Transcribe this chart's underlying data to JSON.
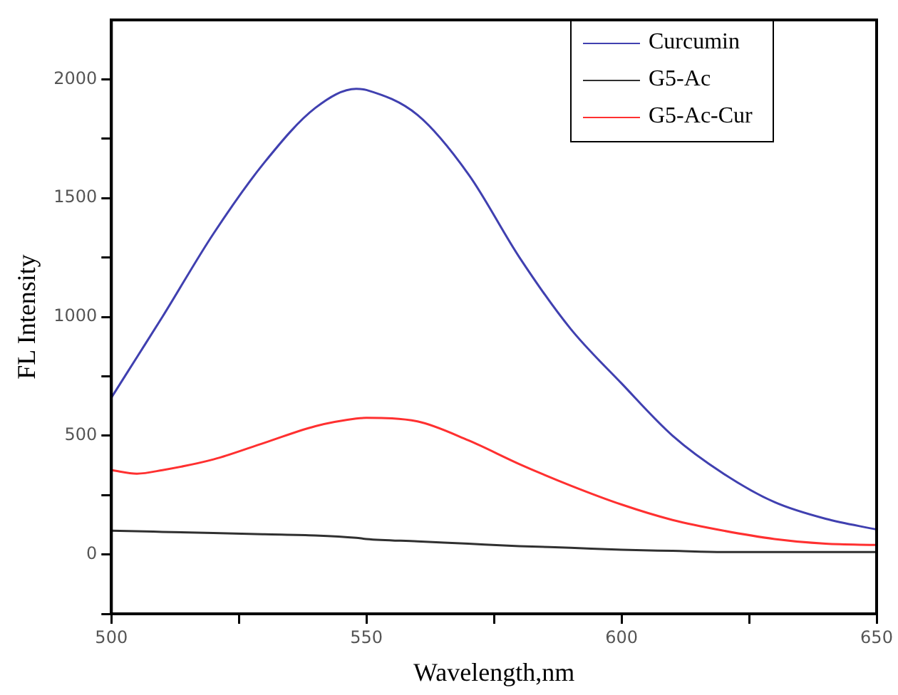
{
  "chart_data": {
    "type": "line",
    "xlabel": "Wavelength,nm",
    "ylabel": "FL Intensity",
    "x": [
      500,
      505,
      510,
      520,
      530,
      540,
      548,
      550,
      560,
      570,
      580,
      590,
      600,
      610,
      620,
      630,
      640,
      650
    ],
    "xlim": [
      500,
      650
    ],
    "xticks": [
      500,
      {
        "value": 525,
        "label": null
      },
      550,
      {
        "value": 575,
        "label": null
      },
      600,
      {
        "value": 625,
        "label": null
      },
      650
    ],
    "ylim": [
      -250,
      2250
    ],
    "yticks": [
      {
        "value": -250,
        "label": null
      },
      0,
      {
        "value": 250,
        "label": null
      },
      500,
      {
        "value": 750,
        "label": null
      },
      1000,
      {
        "value": 1250,
        "label": null
      },
      1500,
      {
        "value": 1750,
        "label": null
      },
      2000
    ],
    "series": [
      {
        "name": "Curcumin",
        "color": "#4040b0",
        "values": [
          660,
          830,
          1000,
          1350,
          1650,
          1880,
          1960,
          1955,
          1850,
          1600,
          1250,
          950,
          720,
          500,
          340,
          220,
          150,
          105
        ]
      },
      {
        "name": "G5-Ac",
        "color": "#303030",
        "values": [
          100,
          98,
          95,
          90,
          85,
          80,
          70,
          65,
          55,
          45,
          35,
          28,
          20,
          15,
          10,
          10,
          10,
          10
        ]
      },
      {
        "name": "G5-Ac-Cur",
        "color": "#ff3030",
        "values": [
          355,
          340,
          355,
          400,
          470,
          540,
          572,
          575,
          560,
          480,
          380,
          290,
          210,
          145,
          100,
          65,
          45,
          40
        ]
      }
    ],
    "legend": "top right",
    "grid": false,
    "marker": "none",
    "line_style": "solid"
  }
}
